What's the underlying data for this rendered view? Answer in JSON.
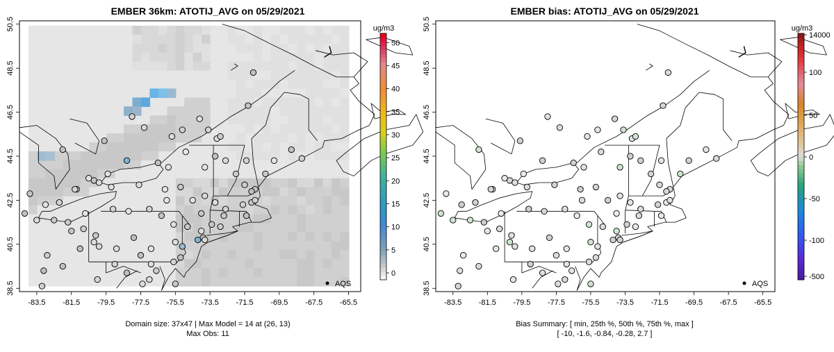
{
  "left": {
    "title": "EMBER 36km: ATOTIJ_AVG on 05/29/2021",
    "legend_title": "ug/m3",
    "legend_ticks": [
      "0",
      "5",
      "10",
      "15",
      "20",
      "25",
      "30",
      "35",
      "40",
      "45",
      "50"
    ],
    "legend_tick_values": [
      0,
      5,
      10,
      15,
      20,
      25,
      30,
      35,
      40,
      45,
      50
    ],
    "legend_range": [
      -1.5,
      52
    ],
    "footer_line1": "Domain size: 37x47 | Max Model = 14 at (26, 13)",
    "footer_line2": "Max Obs: 11",
    "obs_label": "AQS"
  },
  "right": {
    "title": "EMBER bias: ATOTIJ_AVG on 05/29/2021",
    "legend_title": "ug/m3",
    "legend_top_label": "14000",
    "legend_ticks": [
      "100",
      "50",
      "0",
      "-50",
      "-100",
      "-500"
    ],
    "footer_line1": "Bias Summary: [ min, 25th %, 50th %, 75th %, max ]",
    "footer_line2": "[ -10,   -1.6,   -0.84,   -0.28,   2.7 ]",
    "obs_label": "AQS"
  },
  "axes": {
    "x_ticks": [
      "-83.5",
      "-81.5",
      "-79.5",
      "-77.5",
      "-75.5",
      "-73.5",
      "-71.5",
      "-69.5",
      "-67.5",
      "-65.5"
    ],
    "x_values": [
      -83.5,
      -81.5,
      -79.5,
      -77.5,
      -75.5,
      -73.5,
      -71.5,
      -69.5,
      -67.5,
      -65.5
    ],
    "y_ticks": [
      "38.5",
      "40.5",
      "42.5",
      "44.5",
      "46.5",
      "48.5",
      "50.5"
    ],
    "y_values": [
      38.5,
      40.5,
      42.5,
      44.5,
      46.5,
      48.5,
      50.5
    ],
    "lon_range": [
      -84.5,
      -64.8
    ],
    "lat_range": [
      38.35,
      50.65
    ]
  },
  "colors": {
    "frame": "#000000",
    "background": "#e4e4e4",
    "land_line": "#000000",
    "marker_edge": "#000000"
  }
}
